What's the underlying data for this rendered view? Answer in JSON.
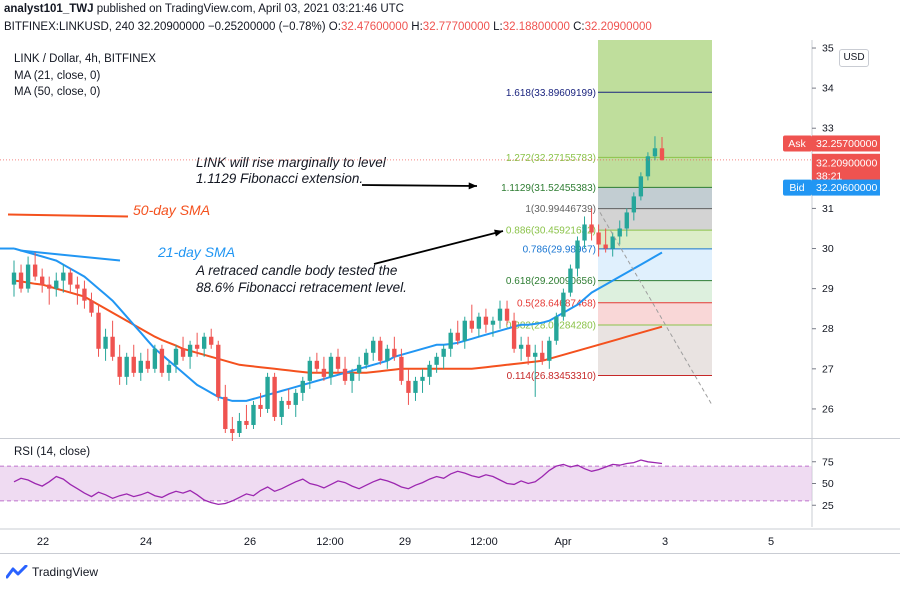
{
  "header": {
    "author": "analyst101_TWJ",
    "published": "published on TradingView.com, April 03, 2021 03:21:46 UTC",
    "symbol": "BITFINEX:LINKUSD, 240",
    "last": "32.20900000",
    "change": "−0.25200000 (−0.78%)",
    "o_label": "O:",
    "o_value": "32.47600000",
    "h_label": "H:",
    "h_value": "32.77700000",
    "l_label": "L:",
    "l_value": "32.18800000",
    "c_label": "C:",
    "c_value": "32.20900000"
  },
  "legend": {
    "title": "LINK / Dollar, 4h, BITFINEX",
    "ma21": "MA (21, close, 0)",
    "ma50": "MA (50, close, 0)",
    "rsi": "RSI (14, close)"
  },
  "currency": "USD",
  "colors": {
    "up": "#26a69a",
    "down": "#ef5350",
    "ma21": "#2196f3",
    "ma50": "#f4511e",
    "rsi": "#9c27b0",
    "rsi_band": "#e1bee7",
    "fib_green": "#8bc34a",
    "text": "#131722"
  },
  "price_tags": {
    "ask_label": "Ask",
    "ask_value": "32.25700000",
    "last_value": "32.20900000",
    "countdown": "38:21",
    "bid_label": "Bid",
    "bid_value": "32.20600000"
  },
  "annotations": {
    "sma50": "50-day SMA",
    "sma21": "21-day SMA",
    "note1_line1": "LINK will rise marginally to level",
    "note1_line2": "1.1129 Fibonacci extension.",
    "note2_line1": "A retraced candle body tested the",
    "note2_line2": "88.6% Fibonacci retracement level."
  },
  "chart_data": {
    "type": "candlestick",
    "y_axis": {
      "ticks": [
        26,
        27,
        28,
        29,
        30,
        31,
        32,
        33,
        34,
        35
      ],
      "range": [
        25.3,
        35.2
      ]
    },
    "x_axis": {
      "labels": [
        "22",
        "24",
        "26",
        "12:00",
        "29",
        "12:00",
        "Apr",
        "3",
        "5"
      ]
    },
    "rsi_axis": {
      "ticks": [
        25,
        50,
        75
      ],
      "band": [
        30,
        70
      ]
    },
    "fib_levels": [
      {
        "label": "1.618(33.89609199)",
        "value": 33.896,
        "color": "#1a237e"
      },
      {
        "label": "1.272(32.27155783)",
        "value": 32.272,
        "color": "#8bc34a"
      },
      {
        "label": "1.1129(31.52455383)",
        "value": 31.525,
        "color": "#2e7d32"
      },
      {
        "label": "1(30.99446739)",
        "value": 30.994,
        "color": "#616161"
      },
      {
        "label": "0.886(30.45921632)",
        "value": 30.459,
        "color": "#8bc34a"
      },
      {
        "label": "0.786(29.98967)",
        "value": 29.99,
        "color": "#1976d2"
      },
      {
        "label": "0.618(29.20090656)",
        "value": 29.201,
        "color": "#2e7d32"
      },
      {
        "label": "0.5(28.64687468)",
        "value": 28.647,
        "color": "#e53935"
      },
      {
        "label": "0.382(28.09284280)",
        "value": 28.093,
        "color": "#8bc34a"
      },
      {
        "label": "0.114(26.83453310)",
        "value": 26.835,
        "color": "#c62828"
      }
    ],
    "candles": [
      [
        29.1,
        29.7,
        28.8,
        29.4
      ],
      [
        29.4,
        29.6,
        28.9,
        29.0
      ],
      [
        29.0,
        29.8,
        28.9,
        29.6
      ],
      [
        29.6,
        29.9,
        29.2,
        29.3
      ],
      [
        29.3,
        29.5,
        28.9,
        29.1
      ],
      [
        29.1,
        29.3,
        28.6,
        29.0
      ],
      [
        29.0,
        29.4,
        28.8,
        29.2
      ],
      [
        29.2,
        29.6,
        28.9,
        29.4
      ],
      [
        29.4,
        29.5,
        28.9,
        29.1
      ],
      [
        29.1,
        29.3,
        28.6,
        29.0
      ],
      [
        29.0,
        29.2,
        28.5,
        28.7
      ],
      [
        28.7,
        28.9,
        28.3,
        28.4
      ],
      [
        28.4,
        28.6,
        27.3,
        27.5
      ],
      [
        27.5,
        28.0,
        27.2,
        27.8
      ],
      [
        27.8,
        28.2,
        27.2,
        27.3
      ],
      [
        27.3,
        27.6,
        26.6,
        26.8
      ],
      [
        26.8,
        27.4,
        26.6,
        27.3
      ],
      [
        27.3,
        27.6,
        26.8,
        26.9
      ],
      [
        26.9,
        27.4,
        26.7,
        27.2
      ],
      [
        27.2,
        27.5,
        26.9,
        27.0
      ],
      [
        27.0,
        27.6,
        26.9,
        27.5
      ],
      [
        27.5,
        27.6,
        26.8,
        26.9
      ],
      [
        26.9,
        27.2,
        26.7,
        27.1
      ],
      [
        27.1,
        27.6,
        26.9,
        27.5
      ],
      [
        27.5,
        27.8,
        27.2,
        27.3
      ],
      [
        27.3,
        27.7,
        27.0,
        27.6
      ],
      [
        27.6,
        27.9,
        27.3,
        27.5
      ],
      [
        27.5,
        27.9,
        27.3,
        27.8
      ],
      [
        27.8,
        28.0,
        27.5,
        27.6
      ],
      [
        27.6,
        27.7,
        26.2,
        26.3
      ],
      [
        26.3,
        26.6,
        25.4,
        25.5
      ],
      [
        25.5,
        25.8,
        25.2,
        25.4
      ],
      [
        25.4,
        25.9,
        25.3,
        25.7
      ],
      [
        25.7,
        26.1,
        25.5,
        25.6
      ],
      [
        25.6,
        26.2,
        25.5,
        26.1
      ],
      [
        26.1,
        26.4,
        25.8,
        26.0
      ],
      [
        26.0,
        26.9,
        25.9,
        26.8
      ],
      [
        26.8,
        26.9,
        25.7,
        25.8
      ],
      [
        25.8,
        26.3,
        25.6,
        26.2
      ],
      [
        26.2,
        26.5,
        26.0,
        26.1
      ],
      [
        26.1,
        26.5,
        25.8,
        26.4
      ],
      [
        26.4,
        26.8,
        26.2,
        26.7
      ],
      [
        26.7,
        27.3,
        26.5,
        27.2
      ],
      [
        27.2,
        27.4,
        26.9,
        27.0
      ],
      [
        27.0,
        27.3,
        26.7,
        26.8
      ],
      [
        26.8,
        27.4,
        26.6,
        27.3
      ],
      [
        27.3,
        27.5,
        26.9,
        27.0
      ],
      [
        27.0,
        27.3,
        26.6,
        26.7
      ],
      [
        26.7,
        27.0,
        26.4,
        26.9
      ],
      [
        26.9,
        27.3,
        26.7,
        27.1
      ],
      [
        27.1,
        27.5,
        27.0,
        27.4
      ],
      [
        27.4,
        27.8,
        27.2,
        27.7
      ],
      [
        27.7,
        27.8,
        27.1,
        27.2
      ],
      [
        27.2,
        27.6,
        27.0,
        27.5
      ],
      [
        27.5,
        27.8,
        27.2,
        27.3
      ],
      [
        27.3,
        27.5,
        26.6,
        26.7
      ],
      [
        26.7,
        27.0,
        26.1,
        26.4
      ],
      [
        26.4,
        26.8,
        26.2,
        26.7
      ],
      [
        26.7,
        27.0,
        26.4,
        26.8
      ],
      [
        26.8,
        27.2,
        26.6,
        27.1
      ],
      [
        27.1,
        27.4,
        26.9,
        27.3
      ],
      [
        27.3,
        27.6,
        27.0,
        27.5
      ],
      [
        27.5,
        28.0,
        27.3,
        27.9
      ],
      [
        27.9,
        28.2,
        27.6,
        27.7
      ],
      [
        27.7,
        28.3,
        27.5,
        28.2
      ],
      [
        28.2,
        28.6,
        27.9,
        28.0
      ],
      [
        28.0,
        28.4,
        27.8,
        28.3
      ],
      [
        28.3,
        28.5,
        27.9,
        28.1
      ],
      [
        28.1,
        28.3,
        27.8,
        28.2
      ],
      [
        28.2,
        28.7,
        28.0,
        28.5
      ],
      [
        28.5,
        28.7,
        28.1,
        28.2
      ],
      [
        28.2,
        28.4,
        27.4,
        27.5
      ],
      [
        27.5,
        27.8,
        27.2,
        27.6
      ],
      [
        27.6,
        27.8,
        27.1,
        27.3
      ],
      [
        27.3,
        27.6,
        26.3,
        27.4
      ],
      [
        27.4,
        27.7,
        27.1,
        27.2
      ],
      [
        27.2,
        27.8,
        27.0,
        27.7
      ],
      [
        27.7,
        28.4,
        27.6,
        28.3
      ],
      [
        28.3,
        29.0,
        28.2,
        28.9
      ],
      [
        28.9,
        29.6,
        28.8,
        29.5
      ],
      [
        29.5,
        30.3,
        29.3,
        30.2
      ],
      [
        30.2,
        30.8,
        30.0,
        30.6
      ],
      [
        30.6,
        31.0,
        30.2,
        30.4
      ],
      [
        30.4,
        30.6,
        29.8,
        30.1
      ],
      [
        30.1,
        30.5,
        29.9,
        30.0
      ],
      [
        30.0,
        30.4,
        29.8,
        30.3
      ],
      [
        30.3,
        30.7,
        30.1,
        30.5
      ],
      [
        30.5,
        31.0,
        30.3,
        30.9
      ],
      [
        30.9,
        31.4,
        30.7,
        31.3
      ],
      [
        31.3,
        31.9,
        31.2,
        31.8
      ],
      [
        31.8,
        32.4,
        31.7,
        32.3
      ],
      [
        32.3,
        32.8,
        32.2,
        32.5
      ],
      [
        32.5,
        32.78,
        32.19,
        32.21
      ]
    ],
    "rsi": [
      52,
      56,
      54,
      50,
      47,
      52,
      58,
      55,
      49,
      44,
      39,
      35,
      40,
      37,
      33,
      36,
      38,
      35,
      37,
      40,
      36,
      34,
      38,
      41,
      39,
      42,
      37,
      31,
      28,
      26,
      27,
      30,
      34,
      38,
      36,
      42,
      46,
      41,
      44,
      48,
      52,
      55,
      50,
      48,
      45,
      49,
      53,
      51,
      47,
      44,
      48,
      52,
      55,
      53,
      50,
      46,
      44,
      48,
      51,
      55,
      58,
      56,
      61,
      64,
      62,
      59,
      57,
      60,
      58,
      54,
      50,
      49,
      53,
      50,
      52,
      58,
      65,
      70,
      72,
      69,
      71,
      67,
      64,
      66,
      69,
      72,
      71,
      73,
      74,
      77,
      75,
      74,
      73
    ],
    "ma21": [
      30.0,
      29.95,
      29.9,
      29.85,
      29.8,
      29.75,
      29.7,
      29.6,
      29.5,
      29.4,
      29.3,
      29.15,
      29.0,
      28.85,
      28.7,
      28.5,
      28.3,
      28.1,
      27.9,
      27.7,
      27.5,
      27.35,
      27.2,
      27.05,
      26.9,
      26.75,
      26.6,
      26.5,
      26.4,
      26.3,
      26.25,
      26.2,
      26.2,
      26.2,
      26.25,
      26.3,
      26.35,
      26.4,
      26.45,
      26.5,
      26.55,
      26.6,
      26.65,
      26.7,
      26.75,
      26.8,
      26.85,
      26.9,
      26.95,
      27.0,
      27.05,
      27.1,
      27.15,
      27.2,
      27.3,
      27.35,
      27.4,
      27.45,
      27.5,
      27.55,
      27.6,
      27.6,
      27.62,
      27.65,
      27.7,
      27.75,
      27.8,
      27.85,
      27.9,
      27.95,
      28.0,
      28.05,
      28.1,
      28.1,
      28.12,
      28.15,
      28.2,
      28.3,
      28.4,
      28.5,
      28.6,
      28.75,
      28.9,
      29.0,
      29.1,
      29.2,
      29.3,
      29.4,
      29.5,
      29.6,
      29.7,
      29.8,
      29.9
    ],
    "ma50": [
      29.2,
      29.18,
      29.15,
      29.12,
      29.1,
      29.05,
      29.0,
      28.95,
      28.9,
      28.85,
      28.8,
      28.7,
      28.6,
      28.5,
      28.4,
      28.3,
      28.2,
      28.1,
      28.0,
      27.9,
      27.8,
      27.72,
      27.65,
      27.58,
      27.5,
      27.45,
      27.4,
      27.35,
      27.3,
      27.25,
      27.2,
      27.15,
      27.1,
      27.08,
      27.06,
      27.04,
      27.02,
      27.0,
      26.98,
      26.96,
      26.94,
      26.92,
      26.9,
      26.9,
      26.9,
      26.9,
      26.9,
      26.9,
      26.9,
      26.9,
      26.9,
      26.92,
      26.94,
      26.96,
      26.98,
      27.0,
      27.0,
      27.0,
      27.0,
      27.0,
      27.0,
      27.0,
      27.0,
      27.0,
      27.0,
      27.0,
      27.02,
      27.04,
      27.06,
      27.08,
      27.1,
      27.12,
      27.14,
      27.16,
      27.18,
      27.2,
      27.25,
      27.3,
      27.35,
      27.4,
      27.45,
      27.5,
      27.55,
      27.6,
      27.65,
      27.7,
      27.75,
      27.8,
      27.85,
      27.9,
      27.95,
      28.0,
      28.05
    ]
  },
  "footer": {
    "brand": "TradingView"
  }
}
